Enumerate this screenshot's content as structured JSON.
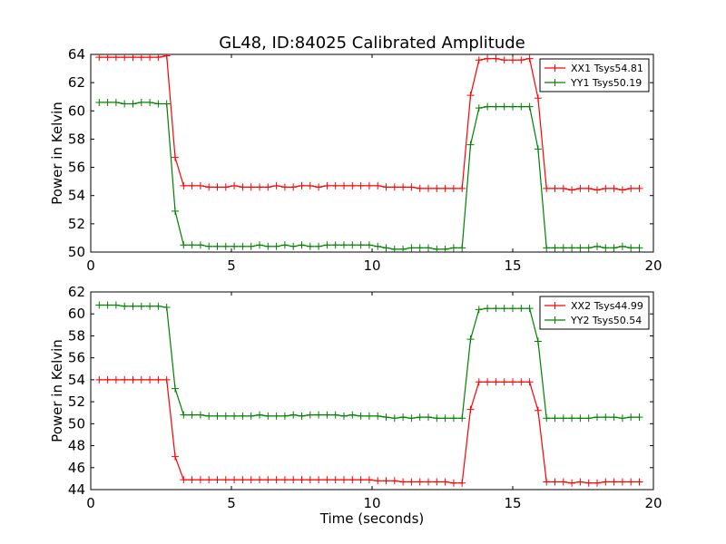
{
  "title": "GL48, ID:84025 Calibrated Amplitude",
  "colors": {
    "xx": "#ff0000",
    "yy": "#008000",
    "axis": "#000000",
    "background": "#ffffff"
  },
  "chart_data": [
    {
      "type": "line",
      "title": "GL48, ID:84025 Calibrated Amplitude",
      "xlabel": "",
      "ylabel": "Power in Kelvin",
      "xlim": [
        0,
        20
      ],
      "ylim": [
        50,
        64
      ],
      "xticks": [
        "0",
        "5",
        "10",
        "15",
        "20"
      ],
      "yticks": [
        "50",
        "52",
        "54",
        "56",
        "58",
        "60",
        "62",
        "64"
      ],
      "grid": false,
      "legend": "top-right",
      "series": [
        {
          "name": "XX1 Tsys54.81",
          "color": "#ff0000",
          "x": [
            0.3,
            0.6,
            0.9,
            1.2,
            1.5,
            1.8,
            2.1,
            2.4,
            2.7,
            3.0,
            3.3,
            3.6,
            3.9,
            4.2,
            4.5,
            4.8,
            5.1,
            5.4,
            5.7,
            6.0,
            6.3,
            6.6,
            6.9,
            7.2,
            7.5,
            7.8,
            8.1,
            8.4,
            8.7,
            9.0,
            9.3,
            9.6,
            9.9,
            10.2,
            10.5,
            10.8,
            11.1,
            11.4,
            11.7,
            12.0,
            12.3,
            12.6,
            12.9,
            13.2,
            13.5,
            13.8,
            14.1,
            14.4,
            14.7,
            15.0,
            15.3,
            15.6,
            15.9,
            16.2,
            16.5,
            16.8,
            17.1,
            17.4,
            17.7,
            18.0,
            18.3,
            18.6,
            18.9,
            19.2,
            19.5
          ],
          "y": [
            63.8,
            63.8,
            63.8,
            63.8,
            63.8,
            63.8,
            63.8,
            63.8,
            63.9,
            56.7,
            54.7,
            54.7,
            54.7,
            54.6,
            54.6,
            54.6,
            54.7,
            54.6,
            54.6,
            54.6,
            54.6,
            54.7,
            54.6,
            54.6,
            54.7,
            54.7,
            54.6,
            54.7,
            54.7,
            54.7,
            54.7,
            54.7,
            54.7,
            54.7,
            54.6,
            54.6,
            54.6,
            54.6,
            54.5,
            54.5,
            54.5,
            54.5,
            54.5,
            54.5,
            61.1,
            63.6,
            63.7,
            63.7,
            63.6,
            63.6,
            63.6,
            63.7,
            60.9,
            54.5,
            54.5,
            54.5,
            54.4,
            54.5,
            54.5,
            54.4,
            54.5,
            54.5,
            54.4,
            54.5,
            54.5
          ]
        },
        {
          "name": "YY1 Tsys50.19",
          "color": "#008000",
          "x": [
            0.3,
            0.6,
            0.9,
            1.2,
            1.5,
            1.8,
            2.1,
            2.4,
            2.7,
            3.0,
            3.3,
            3.6,
            3.9,
            4.2,
            4.5,
            4.8,
            5.1,
            5.4,
            5.7,
            6.0,
            6.3,
            6.6,
            6.9,
            7.2,
            7.5,
            7.8,
            8.1,
            8.4,
            8.7,
            9.0,
            9.3,
            9.6,
            9.9,
            10.2,
            10.5,
            10.8,
            11.1,
            11.4,
            11.7,
            12.0,
            12.3,
            12.6,
            12.9,
            13.2,
            13.5,
            13.8,
            14.1,
            14.4,
            14.7,
            15.0,
            15.3,
            15.6,
            15.9,
            16.2,
            16.5,
            16.8,
            17.1,
            17.4,
            17.7,
            18.0,
            18.3,
            18.6,
            18.9,
            19.2,
            19.5
          ],
          "y": [
            60.6,
            60.6,
            60.6,
            60.5,
            60.5,
            60.6,
            60.6,
            60.5,
            60.5,
            52.9,
            50.5,
            50.5,
            50.5,
            50.4,
            50.4,
            50.4,
            50.4,
            50.4,
            50.4,
            50.5,
            50.4,
            50.4,
            50.5,
            50.4,
            50.5,
            50.4,
            50.4,
            50.5,
            50.5,
            50.5,
            50.5,
            50.5,
            50.5,
            50.4,
            50.3,
            50.2,
            50.2,
            50.3,
            50.3,
            50.3,
            50.2,
            50.2,
            50.3,
            50.3,
            57.6,
            60.2,
            60.3,
            60.3,
            60.3,
            60.3,
            60.3,
            60.3,
            57.3,
            50.3,
            50.3,
            50.3,
            50.3,
            50.3,
            50.3,
            50.4,
            50.3,
            50.3,
            50.4,
            50.3,
            50.3
          ]
        }
      ]
    },
    {
      "type": "line",
      "title": "",
      "xlabel": "Time (seconds)",
      "ylabel": "Power in Kelvin",
      "xlim": [
        0,
        20
      ],
      "ylim": [
        44,
        62
      ],
      "xticks": [
        "0",
        "5",
        "10",
        "15",
        "20"
      ],
      "yticks": [
        "44",
        "46",
        "48",
        "50",
        "52",
        "54",
        "56",
        "58",
        "60",
        "62"
      ],
      "grid": false,
      "legend": "top-right",
      "series": [
        {
          "name": "XX2 Tsys44.99",
          "color": "#ff0000",
          "x": [
            0.3,
            0.6,
            0.9,
            1.2,
            1.5,
            1.8,
            2.1,
            2.4,
            2.7,
            3.0,
            3.3,
            3.6,
            3.9,
            4.2,
            4.5,
            4.8,
            5.1,
            5.4,
            5.7,
            6.0,
            6.3,
            6.6,
            6.9,
            7.2,
            7.5,
            7.8,
            8.1,
            8.4,
            8.7,
            9.0,
            9.3,
            9.6,
            9.9,
            10.2,
            10.5,
            10.8,
            11.1,
            11.4,
            11.7,
            12.0,
            12.3,
            12.6,
            12.9,
            13.2,
            13.5,
            13.8,
            14.1,
            14.4,
            14.7,
            15.0,
            15.3,
            15.6,
            15.9,
            16.2,
            16.5,
            16.8,
            17.1,
            17.4,
            17.7,
            18.0,
            18.3,
            18.6,
            18.9,
            19.2,
            19.5
          ],
          "y": [
            54.0,
            54.0,
            54.0,
            54.0,
            54.0,
            54.0,
            54.0,
            54.0,
            54.0,
            47.0,
            44.9,
            44.9,
            44.9,
            44.9,
            44.9,
            44.9,
            44.9,
            44.9,
            44.9,
            44.9,
            44.9,
            44.9,
            44.9,
            44.9,
            44.9,
            44.9,
            44.9,
            44.9,
            44.9,
            44.9,
            44.9,
            44.9,
            44.9,
            44.8,
            44.8,
            44.8,
            44.7,
            44.7,
            44.7,
            44.7,
            44.7,
            44.7,
            44.6,
            44.6,
            51.3,
            53.8,
            53.8,
            53.8,
            53.8,
            53.8,
            53.8,
            53.8,
            51.2,
            44.7,
            44.7,
            44.7,
            44.6,
            44.7,
            44.6,
            44.6,
            44.7,
            44.7,
            44.7,
            44.7,
            44.7
          ]
        },
        {
          "name": "YY2 Tsys50.54",
          "color": "#008000",
          "x": [
            0.3,
            0.6,
            0.9,
            1.2,
            1.5,
            1.8,
            2.1,
            2.4,
            2.7,
            3.0,
            3.3,
            3.6,
            3.9,
            4.2,
            4.5,
            4.8,
            5.1,
            5.4,
            5.7,
            6.0,
            6.3,
            6.6,
            6.9,
            7.2,
            7.5,
            7.8,
            8.1,
            8.4,
            8.7,
            9.0,
            9.3,
            9.6,
            9.9,
            10.2,
            10.5,
            10.8,
            11.1,
            11.4,
            11.7,
            12.0,
            12.3,
            12.6,
            12.9,
            13.2,
            13.5,
            13.8,
            14.1,
            14.4,
            14.7,
            15.0,
            15.3,
            15.6,
            15.9,
            16.2,
            16.5,
            16.8,
            17.1,
            17.4,
            17.7,
            18.0,
            18.3,
            18.6,
            18.9,
            19.2,
            19.5
          ],
          "y": [
            60.8,
            60.8,
            60.8,
            60.7,
            60.7,
            60.7,
            60.7,
            60.7,
            60.6,
            53.2,
            50.8,
            50.8,
            50.8,
            50.7,
            50.7,
            50.7,
            50.7,
            50.7,
            50.7,
            50.8,
            50.7,
            50.7,
            50.7,
            50.8,
            50.7,
            50.8,
            50.8,
            50.8,
            50.8,
            50.7,
            50.8,
            50.7,
            50.7,
            50.7,
            50.6,
            50.5,
            50.6,
            50.5,
            50.6,
            50.6,
            50.5,
            50.5,
            50.5,
            50.5,
            57.7,
            60.4,
            60.5,
            60.5,
            60.5,
            60.5,
            60.5,
            60.5,
            57.5,
            50.5,
            50.5,
            50.5,
            50.5,
            50.5,
            50.5,
            50.6,
            50.6,
            50.6,
            50.5,
            50.6,
            50.6
          ]
        }
      ]
    }
  ]
}
